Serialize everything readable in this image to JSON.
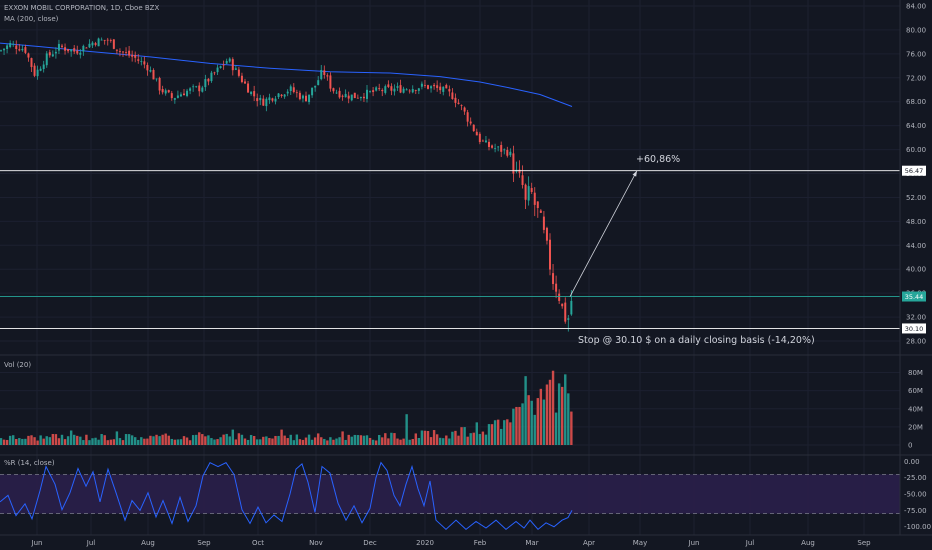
{
  "colors": {
    "background": "#131722",
    "up": "#26a69a",
    "down": "#ef5350",
    "ma": "#2962ff",
    "level": "#ffffff",
    "entry": "#26a69a",
    "wr_band": "#2a1f4a",
    "wr_line": "#2962ff",
    "grid": "#1c2030",
    "text": "#b2b5be"
  },
  "header": {
    "title": "EXXON MOBIL CORPORATION, 1D, Cboe BZX",
    "ma_label": "MA (200, close)"
  },
  "annotations": {
    "target_label": "+60,86%",
    "stop_label": "Stop @ 30.10 $ on a daily closing basis (-14,20%)"
  },
  "levels": {
    "target_tag": "56.47",
    "entry_tag": "35.44",
    "stop_tag": "30.10"
  },
  "chart_data": [
    {
      "type": "candlestick",
      "title": "EXXON MOBIL CORPORATION, 1D, Cboe BZX",
      "y_axis": {
        "ticks": [
          "84.00",
          "80.00",
          "76.00",
          "72.00",
          "68.00",
          "64.00",
          "60.00",
          "56.00",
          "52.00",
          "48.00",
          "44.00",
          "40.00",
          "36.00",
          "32.00",
          "28.00"
        ],
        "range": [
          26.5,
          84
        ]
      },
      "x_axis": {
        "ticks": [
          "Jun",
          "Jul",
          "Aug",
          "Sep",
          "Oct",
          "Nov",
          "Dec",
          "2020",
          "Feb",
          "Mar",
          "Apr",
          "May",
          "Jun",
          "Jul",
          "Aug",
          "Sep"
        ]
      },
      "ma_200": {
        "label": "MA (200, close)",
        "points": [
          [
            0,
            77.8
          ],
          [
            40,
            77.2
          ],
          [
            90,
            76.4
          ],
          [
            150,
            75.5
          ],
          [
            210,
            74.4
          ],
          [
            270,
            73.6
          ],
          [
            330,
            73.0
          ],
          [
            390,
            72.8
          ],
          [
            440,
            72.2
          ],
          [
            480,
            71.3
          ],
          [
            510,
            70.3
          ],
          [
            540,
            69.2
          ],
          [
            556,
            68.2
          ],
          [
            572,
            67.2
          ]
        ]
      },
      "close_path": [
        [
          0,
          76.5
        ],
        [
          10,
          77.6
        ],
        [
          25,
          76.8
        ],
        [
          35,
          72.5
        ],
        [
          45,
          75.2
        ],
        [
          60,
          77.2
        ],
        [
          75,
          76.4
        ],
        [
          95,
          78.1
        ],
        [
          108,
          78.3
        ],
        [
          120,
          76.5
        ],
        [
          135,
          75.3
        ],
        [
          148,
          73.8
        ],
        [
          160,
          70.2
        ],
        [
          172,
          68.6
        ],
        [
          185,
          69.7
        ],
        [
          200,
          70.3
        ],
        [
          215,
          72.8
        ],
        [
          228,
          75.1
        ],
        [
          240,
          72.1
        ],
        [
          252,
          69.3
        ],
        [
          262,
          67.9
        ],
        [
          275,
          69.1
        ],
        [
          290,
          70.1
        ],
        [
          305,
          68.4
        ],
        [
          315,
          70.7
        ],
        [
          323,
          73.2
        ],
        [
          332,
          70.1
        ],
        [
          342,
          69.2
        ],
        [
          355,
          68.9
        ],
        [
          368,
          69.4
        ],
        [
          380,
          69.9
        ],
        [
          395,
          70.1
        ],
        [
          410,
          70.3
        ],
        [
          425,
          70.6
        ],
        [
          440,
          70.1
        ],
        [
          452,
          69.1
        ],
        [
          462,
          66.9
        ],
        [
          472,
          63.9
        ],
        [
          480,
          61.6
        ],
        [
          488,
          60.6
        ],
        [
          498,
          60.1
        ],
        [
          508,
          59.6
        ],
        [
          516,
          55.9
        ],
        [
          522,
          54.4
        ],
        [
          526,
          50.6
        ],
        [
          530,
          53.6
        ],
        [
          534,
          51.1
        ],
        [
          540,
          48.6
        ],
        [
          544,
          45.6
        ],
        [
          548,
          42.6
        ],
        [
          552,
          38.6
        ],
        [
          556,
          37.1
        ],
        [
          560,
          35.1
        ],
        [
          564,
          32.1
        ],
        [
          568,
          31.6
        ],
        [
          572,
          35.4
        ]
      ],
      "levels": [
        {
          "name": "Target",
          "value": 56.47,
          "label": "+60,86%"
        },
        {
          "name": "Entry",
          "value": 35.44
        },
        {
          "name": "Stop",
          "value": 30.1,
          "label": "Stop @ 30.10 $ on a daily closing basis (-14,20%)"
        }
      ]
    },
    {
      "type": "bar",
      "title": "Vol (20)",
      "y_axis": {
        "ticks": [
          "80M",
          "60M",
          "40M",
          "20M",
          "0"
        ],
        "range": [
          0,
          85
        ]
      },
      "regime_path": [
        [
          0,
          8
        ],
        [
          100,
          9
        ],
        [
          200,
          9
        ],
        [
          300,
          9
        ],
        [
          380,
          9
        ],
        [
          400,
          10
        ],
        [
          440,
          12
        ],
        [
          470,
          15
        ],
        [
          490,
          18
        ],
        [
          505,
          22
        ],
        [
          515,
          30
        ],
        [
          525,
          40
        ],
        [
          535,
          50
        ],
        [
          545,
          58
        ],
        [
          555,
          63
        ],
        [
          565,
          67
        ],
        [
          572,
          66
        ]
      ],
      "spikes": [
        [
          70,
          16
        ],
        [
          118,
          15
        ],
        [
          200,
          14
        ],
        [
          232,
          17
        ],
        [
          282,
          17
        ],
        [
          343,
          15
        ],
        [
          408,
          34
        ],
        [
          476,
          25
        ],
        [
          492,
          23
        ],
        [
          497,
          28
        ],
        [
          511,
          25
        ],
        [
          518,
          42
        ],
        [
          525,
          76
        ],
        [
          530,
          55
        ],
        [
          540,
          62
        ],
        [
          549,
          72
        ],
        [
          554,
          82
        ],
        [
          560,
          68
        ],
        [
          564,
          78
        ],
        [
          567,
          57
        ]
      ]
    },
    {
      "type": "line",
      "title": "%R (14, close)",
      "y_axis": {
        "ticks": [
          "0.00",
          "-25.00",
          "-50.00",
          "-75.00",
          "-100.00"
        ],
        "range": [
          -105,
          2
        ]
      },
      "band": [
        -20,
        -80
      ],
      "points": [
        [
          0,
          -62
        ],
        [
          8,
          -52
        ],
        [
          16,
          -83
        ],
        [
          25,
          -65
        ],
        [
          32,
          -88
        ],
        [
          40,
          -45
        ],
        [
          46,
          -8
        ],
        [
          55,
          -35
        ],
        [
          62,
          -74
        ],
        [
          70,
          -48
        ],
        [
          78,
          -11
        ],
        [
          86,
          -38
        ],
        [
          93,
          -16
        ],
        [
          100,
          -62
        ],
        [
          108,
          -12
        ],
        [
          116,
          -48
        ],
        [
          125,
          -90
        ],
        [
          132,
          -60
        ],
        [
          140,
          -75
        ],
        [
          148,
          -48
        ],
        [
          156,
          -85
        ],
        [
          163,
          -60
        ],
        [
          172,
          -95
        ],
        [
          180,
          -55
        ],
        [
          188,
          -92
        ],
        [
          196,
          -68
        ],
        [
          203,
          -22
        ],
        [
          210,
          -2
        ],
        [
          218,
          -8
        ],
        [
          226,
          -2
        ],
        [
          234,
          -20
        ],
        [
          242,
          -74
        ],
        [
          250,
          -95
        ],
        [
          258,
          -70
        ],
        [
          266,
          -94
        ],
        [
          274,
          -82
        ],
        [
          282,
          -92
        ],
        [
          290,
          -50
        ],
        [
          296,
          -12
        ],
        [
          302,
          -4
        ],
        [
          308,
          -32
        ],
        [
          315,
          -78
        ],
        [
          322,
          -8
        ],
        [
          330,
          -18
        ],
        [
          338,
          -64
        ],
        [
          346,
          -90
        ],
        [
          354,
          -68
        ],
        [
          362,
          -94
        ],
        [
          370,
          -72
        ],
        [
          376,
          -25
        ],
        [
          381,
          -2
        ],
        [
          387,
          -14
        ],
        [
          394,
          -52
        ],
        [
          400,
          -68
        ],
        [
          406,
          -35
        ],
        [
          412,
          -8
        ],
        [
          418,
          -42
        ],
        [
          424,
          -68
        ],
        [
          430,
          -30
        ],
        [
          436,
          -90
        ],
        [
          446,
          -104
        ],
        [
          456,
          -90
        ],
        [
          466,
          -104
        ],
        [
          476,
          -92
        ],
        [
          486,
          -102
        ],
        [
          496,
          -90
        ],
        [
          506,
          -104
        ],
        [
          516,
          -92
        ],
        [
          524,
          -102
        ],
        [
          530,
          -90
        ],
        [
          538,
          -104
        ],
        [
          546,
          -94
        ],
        [
          554,
          -100
        ],
        [
          562,
          -90
        ],
        [
          568,
          -86
        ],
        [
          572,
          -75
        ]
      ]
    }
  ]
}
